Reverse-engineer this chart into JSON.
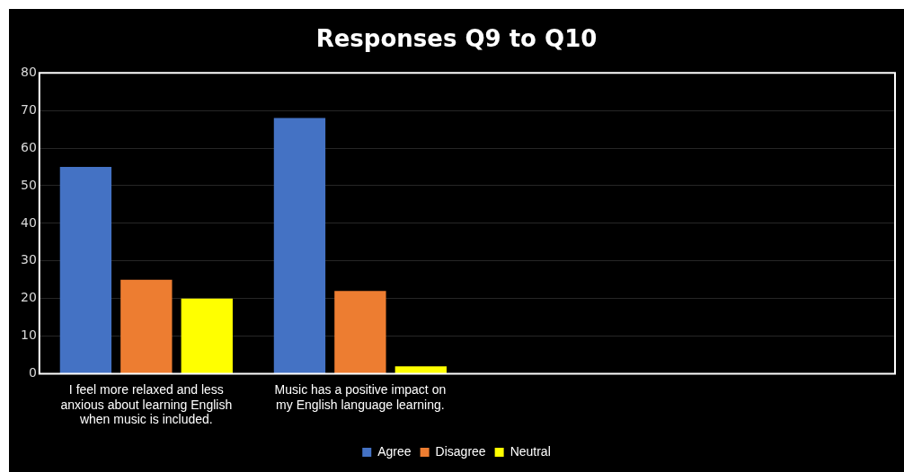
{
  "chart_data": {
    "type": "bar",
    "title": "Responses Q9 to Q10",
    "categories": [
      "I feel more relaxed and less anxious about learning English when music is included.",
      "Music has a positive impact on my English language learning.",
      null,
      null
    ],
    "series": [
      {
        "name": "Agree",
        "color": "#4472c4",
        "values": [
          55,
          68,
          null,
          null
        ]
      },
      {
        "name": "Disagree",
        "color": "#ed7d31",
        "values": [
          25,
          22,
          null,
          null
        ]
      },
      {
        "name": "Neutral",
        "color": "#ffff00",
        "values": [
          20,
          2,
          null,
          null
        ]
      }
    ],
    "ylim": [
      0,
      80
    ],
    "yticks": [
      0,
      10,
      20,
      30,
      40,
      50,
      60,
      70,
      80
    ],
    "grid": "y",
    "legend": "bottom"
  }
}
